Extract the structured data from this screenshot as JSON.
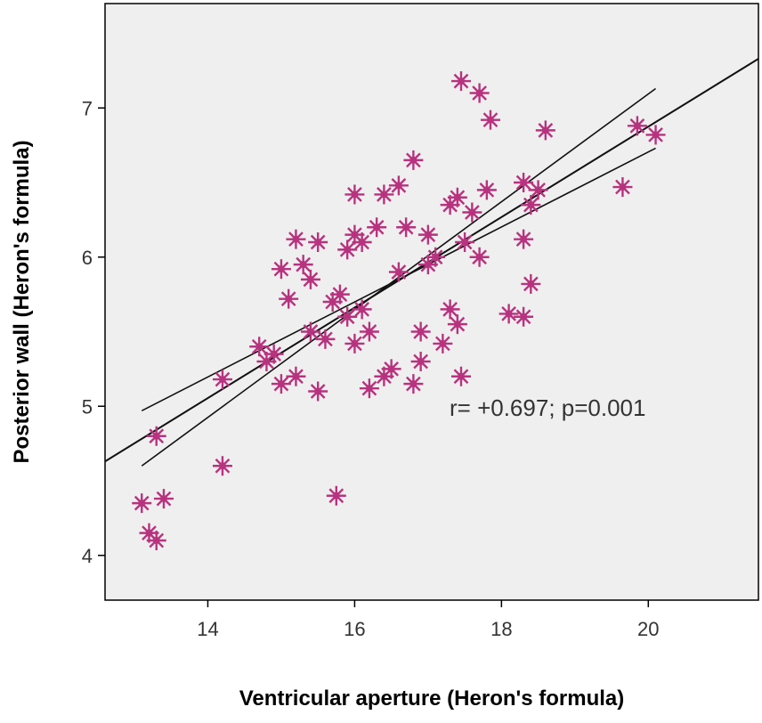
{
  "chart_data": {
    "type": "scatter",
    "xlabel": "Ventricular aperture (Heron's formula)",
    "ylabel": "Posterior wall (Heron's formula)",
    "xlim": [
      12.6,
      21.5
    ],
    "ylim": [
      3.7,
      7.7
    ],
    "x_ticks": [
      "14",
      "16",
      "18",
      "20"
    ],
    "y_ticks": [
      "4",
      "5",
      "6",
      "7"
    ],
    "grid": false,
    "marker_color": "#b8337f",
    "background_color": "#efefef",
    "annotation": "r= +0.697; p=0.001",
    "points": [
      [
        13.1,
        4.35
      ],
      [
        13.2,
        4.15
      ],
      [
        13.3,
        4.1
      ],
      [
        13.4,
        4.38
      ],
      [
        13.3,
        4.8
      ],
      [
        14.2,
        4.6
      ],
      [
        14.2,
        5.18
      ],
      [
        14.7,
        5.4
      ],
      [
        14.8,
        5.3
      ],
      [
        14.9,
        5.35
      ],
      [
        15.0,
        5.15
      ],
      [
        15.0,
        5.92
      ],
      [
        15.1,
        5.72
      ],
      [
        15.2,
        5.2
      ],
      [
        15.2,
        6.12
      ],
      [
        15.3,
        5.95
      ],
      [
        15.4,
        5.85
      ],
      [
        15.4,
        5.5
      ],
      [
        15.5,
        5.1
      ],
      [
        15.5,
        6.1
      ],
      [
        15.6,
        5.45
      ],
      [
        15.7,
        5.7
      ],
      [
        15.8,
        5.75
      ],
      [
        15.75,
        4.4
      ],
      [
        15.9,
        5.6
      ],
      [
        15.9,
        6.05
      ],
      [
        16.0,
        5.42
      ],
      [
        16.0,
        6.42
      ],
      [
        16.0,
        6.15
      ],
      [
        16.1,
        6.1
      ],
      [
        16.1,
        5.65
      ],
      [
        16.2,
        5.5
      ],
      [
        16.2,
        5.12
      ],
      [
        16.3,
        6.2
      ],
      [
        16.4,
        6.42
      ],
      [
        16.4,
        5.2
      ],
      [
        16.5,
        5.25
      ],
      [
        16.6,
        5.9
      ],
      [
        16.6,
        6.48
      ],
      [
        16.7,
        6.2
      ],
      [
        16.8,
        6.65
      ],
      [
        16.8,
        5.15
      ],
      [
        16.9,
        5.5
      ],
      [
        16.9,
        5.3
      ],
      [
        17.0,
        5.95
      ],
      [
        17.0,
        6.15
      ],
      [
        17.1,
        6.0
      ],
      [
        17.2,
        5.42
      ],
      [
        17.3,
        5.65
      ],
      [
        17.3,
        6.35
      ],
      [
        17.4,
        6.4
      ],
      [
        17.4,
        5.55
      ],
      [
        17.45,
        5.2
      ],
      [
        17.45,
        7.18
      ],
      [
        17.5,
        6.1
      ],
      [
        17.6,
        6.3
      ],
      [
        17.7,
        6.0
      ],
      [
        17.7,
        7.1
      ],
      [
        17.8,
        6.45
      ],
      [
        17.85,
        6.92
      ],
      [
        18.1,
        5.62
      ],
      [
        18.3,
        5.6
      ],
      [
        18.3,
        6.5
      ],
      [
        18.3,
        6.12
      ],
      [
        18.4,
        5.82
      ],
      [
        18.4,
        6.35
      ],
      [
        18.5,
        6.45
      ],
      [
        18.6,
        6.85
      ],
      [
        19.65,
        6.47
      ],
      [
        19.85,
        6.88
      ],
      [
        20.1,
        6.82
      ]
    ],
    "fit_lines": [
      {
        "role": "regression",
        "x": [
          12.6,
          21.5
        ],
        "y": [
          4.63,
          7.33
        ]
      },
      {
        "role": "upper-ci",
        "x": [
          13.1,
          20.1
        ],
        "y": [
          4.6,
          7.13
        ]
      },
      {
        "role": "lower-ci",
        "x": [
          13.1,
          20.1
        ],
        "y": [
          4.97,
          6.73
        ]
      }
    ]
  }
}
